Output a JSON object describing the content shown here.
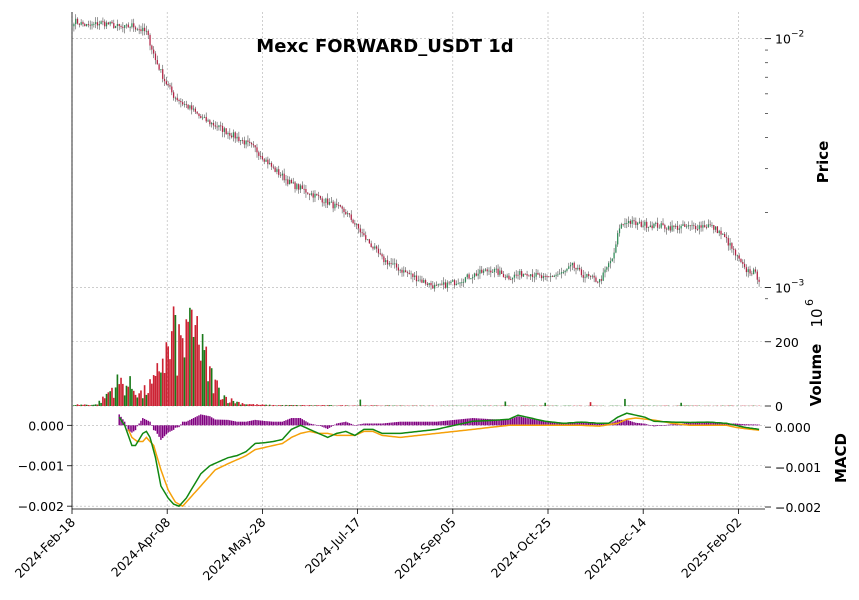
{
  "chart_data": {
    "type": "candlestick",
    "title": "Mexc FORWARD_USDT 1d",
    "x_tick_labels": [
      "2024-Feb-18",
      "2024-Apr-08",
      "2024-May-28",
      "2024-Jul-17",
      "2024-Sep-05",
      "2024-Oct-25",
      "2024-Dec-14",
      "2025-Feb-02"
    ],
    "colors": {
      "up": "#1a7a1a",
      "down": "#cc2233",
      "macd_line": "#118811",
      "signal_line": "#f5a10a",
      "histogram": "#800080"
    },
    "price_panel": {
      "ylabel": "Price",
      "scale": "log",
      "ylim": [
        0.00089,
        0.0128
      ],
      "tick_labels": [
        {
          "value": 0.01,
          "base": "10",
          "exp": "−2"
        },
        {
          "value": 0.001,
          "base": "10",
          "exp": "−3"
        }
      ],
      "close_keypoints": [
        [
          0,
          0.0118
        ],
        [
          8,
          0.0112
        ],
        [
          15,
          0.0116
        ],
        [
          20,
          0.0114
        ],
        [
          27,
          0.011
        ],
        [
          32,
          0.0113
        ],
        [
          40,
          0.0106
        ],
        [
          45,
          0.0082
        ],
        [
          50,
          0.0068
        ],
        [
          55,
          0.0059
        ],
        [
          60,
          0.0055
        ],
        [
          65,
          0.0052
        ],
        [
          70,
          0.0048
        ],
        [
          80,
          0.0044
        ],
        [
          90,
          0.004
        ],
        [
          100,
          0.0036
        ],
        [
          110,
          0.003
        ],
        [
          120,
          0.0026
        ],
        [
          130,
          0.0024
        ],
        [
          140,
          0.0022
        ],
        [
          150,
          0.002
        ],
        [
          160,
          0.0016
        ],
        [
          170,
          0.0013
        ],
        [
          180,
          0.00118
        ],
        [
          190,
          0.00108
        ],
        [
          200,
          0.001
        ],
        [
          210,
          0.00105
        ],
        [
          220,
          0.00112
        ],
        [
          230,
          0.00118
        ],
        [
          240,
          0.0011
        ],
        [
          250,
          0.00115
        ],
        [
          260,
          0.00108
        ],
        [
          265,
          0.00112
        ],
        [
          270,
          0.00114
        ],
        [
          275,
          0.00122
        ],
        [
          280,
          0.00113
        ],
        [
          285,
          0.00109
        ],
        [
          290,
          0.00106
        ],
        [
          292,
          0.00112
        ],
        [
          298,
          0.00135
        ],
        [
          301,
          0.00175
        ],
        [
          305,
          0.00185
        ],
        [
          310,
          0.0018
        ],
        [
          320,
          0.00178
        ],
        [
          330,
          0.00174
        ],
        [
          340,
          0.00175
        ],
        [
          350,
          0.00178
        ],
        [
          355,
          0.0017
        ],
        [
          360,
          0.00155
        ],
        [
          365,
          0.00135
        ],
        [
          370,
          0.00118
        ],
        [
          375,
          0.00115
        ],
        [
          378,
          0.00108
        ]
      ],
      "n_days": 379
    },
    "volume_panel": {
      "ylabel": "Volume",
      "unit_label": "10",
      "unit_exp": "6",
      "ylim": [
        0,
        330
      ],
      "tick_values": [
        0,
        200
      ],
      "spikes": [
        {
          "day": 55,
          "value": 310
        },
        {
          "day": 65,
          "value": 300
        },
        {
          "day": 68,
          "value": 280
        },
        {
          "day": 62,
          "value": 270
        }
      ],
      "envelope": [
        [
          12,
          5
        ],
        [
          16,
          25
        ],
        [
          20,
          60
        ],
        [
          25,
          90
        ],
        [
          30,
          80
        ],
        [
          35,
          60
        ],
        [
          38,
          40
        ],
        [
          40,
          65
        ],
        [
          45,
          85
        ],
        [
          48,
          180
        ],
        [
          52,
          200
        ],
        [
          55,
          230
        ],
        [
          58,
          230
        ],
        [
          62,
          240
        ],
        [
          65,
          250
        ],
        [
          68,
          230
        ],
        [
          72,
          180
        ],
        [
          75,
          120
        ],
        [
          80,
          60
        ],
        [
          85,
          25
        ],
        [
          90,
          15
        ],
        [
          95,
          8
        ],
        [
          100,
          5
        ],
        [
          110,
          3
        ],
        [
          150,
          2
        ],
        [
          200,
          1
        ],
        [
          379,
          1
        ]
      ],
      "extra_bars": [
        {
          "day": 158,
          "value": 20,
          "dir": "up"
        },
        {
          "day": 238,
          "value": 14,
          "dir": "up"
        },
        {
          "day": 260,
          "value": 10,
          "dir": "up"
        },
        {
          "day": 285,
          "value": 12,
          "dir": "down"
        },
        {
          "day": 304,
          "value": 22,
          "dir": "up"
        },
        {
          "day": 335,
          "value": 10,
          "dir": "up"
        }
      ]
    },
    "macd_panel": {
      "ylabel": "MACD",
      "left_ylim": [
        -0.00207,
        0.00028
      ],
      "left_tick_labels": [
        {
          "value": 0.0,
          "label": "0.000"
        },
        {
          "value": -0.001,
          "label": "−0.001"
        },
        {
          "value": -0.002,
          "label": "−0.002"
        }
      ],
      "right_ylim": [
        -0.00205,
        0.00033
      ],
      "right_tick_labels": [
        {
          "value": 0.0,
          "label": "0.000"
        },
        {
          "value": -0.001,
          "label": "−0.001"
        },
        {
          "value": -0.002,
          "label": "−0.002"
        }
      ],
      "start_day": 25,
      "macd_keypoints": [
        [
          25,
          0.0002
        ],
        [
          28,
          0.0
        ],
        [
          30,
          -0.00025
        ],
        [
          32,
          -0.0005
        ],
        [
          34,
          -0.0005
        ],
        [
          36,
          -0.00035
        ],
        [
          38,
          -0.0002
        ],
        [
          40,
          -0.00015
        ],
        [
          42,
          -0.0003
        ],
        [
          45,
          -0.0008
        ],
        [
          48,
          -0.0015
        ],
        [
          52,
          -0.0018
        ],
        [
          55,
          -0.00195
        ],
        [
          58,
          -0.002
        ],
        [
          62,
          -0.0018
        ],
        [
          66,
          -0.0015
        ],
        [
          70,
          -0.0012
        ],
        [
          75,
          -0.001
        ],
        [
          80,
          -0.0009
        ],
        [
          85,
          -0.0008
        ],
        [
          90,
          -0.00075
        ],
        [
          95,
          -0.00065
        ],
        [
          100,
          -0.00045
        ],
        [
          105,
          -0.00043
        ],
        [
          110,
          -0.0004
        ],
        [
          115,
          -0.00035
        ],
        [
          120,
          -0.0001
        ],
        [
          125,
          0.0
        ],
        [
          130,
          -0.0001
        ],
        [
          135,
          -0.0002
        ],
        [
          140,
          -0.0003
        ],
        [
          145,
          -0.0002
        ],
        [
          150,
          -0.00015
        ],
        [
          155,
          -0.00025
        ],
        [
          160,
          -0.0001
        ],
        [
          165,
          -0.0001
        ],
        [
          170,
          -0.0002
        ],
        [
          175,
          -0.0002
        ],
        [
          180,
          -0.0002
        ],
        [
          190,
          -0.00015
        ],
        [
          200,
          -0.0001
        ],
        [
          210,
          0.0
        ],
        [
          220,
          0.0001
        ],
        [
          230,
          0.00012
        ],
        [
          240,
          0.00015
        ],
        [
          245,
          0.00025
        ],
        [
          250,
          0.0002
        ],
        [
          260,
          0.0001
        ],
        [
          270,
          5e-05
        ],
        [
          280,
          8e-05
        ],
        [
          290,
          5e-05
        ],
        [
          295,
          5e-05
        ],
        [
          300,
          0.0002
        ],
        [
          305,
          0.0003
        ],
        [
          310,
          0.00025
        ],
        [
          315,
          0.0002
        ],
        [
          320,
          0.0001
        ],
        [
          330,
          8e-05
        ],
        [
          340,
          7e-05
        ],
        [
          350,
          8e-05
        ],
        [
          360,
          5e-05
        ],
        [
          365,
          0.0
        ],
        [
          370,
          -5e-05
        ],
        [
          375,
          -8e-05
        ],
        [
          378,
          -0.0001
        ]
      ],
      "signal_keypoints": [
        [
          30,
          -0.0001
        ],
        [
          32,
          -0.0003
        ],
        [
          35,
          -0.0004
        ],
        [
          38,
          -0.0004
        ],
        [
          40,
          -0.0003
        ],
        [
          44,
          -0.0005
        ],
        [
          48,
          -0.0011
        ],
        [
          52,
          -0.0016
        ],
        [
          56,
          -0.0019
        ],
        [
          60,
          -0.002
        ],
        [
          64,
          -0.0018
        ],
        [
          68,
          -0.0016
        ],
        [
          72,
          -0.0014
        ],
        [
          78,
          -0.0011
        ],
        [
          85,
          -0.00095
        ],
        [
          90,
          -0.00085
        ],
        [
          95,
          -0.00075
        ],
        [
          100,
          -0.0006
        ],
        [
          110,
          -0.0005
        ],
        [
          115,
          -0.00045
        ],
        [
          120,
          -0.0003
        ],
        [
          125,
          -0.0002
        ],
        [
          130,
          -0.00015
        ],
        [
          135,
          -0.0002
        ],
        [
          140,
          -0.0002
        ],
        [
          145,
          -0.00025
        ],
        [
          150,
          -0.00025
        ],
        [
          155,
          -0.00025
        ],
        [
          160,
          -0.00015
        ],
        [
          165,
          -0.00015
        ],
        [
          170,
          -0.00025
        ],
        [
          180,
          -0.0003
        ],
        [
          190,
          -0.00025
        ],
        [
          200,
          -0.0002
        ],
        [
          210,
          -0.00015
        ],
        [
          220,
          -0.0001
        ],
        [
          230,
          -5e-05
        ],
        [
          240,
          0.0
        ],
        [
          250,
          0.0
        ],
        [
          260,
          0.0
        ],
        [
          270,
          0.0
        ],
        [
          280,
          0.0
        ],
        [
          290,
          -2e-05
        ],
        [
          300,
          5e-05
        ],
        [
          305,
          0.00015
        ],
        [
          310,
          0.00018
        ],
        [
          320,
          0.00013
        ],
        [
          330,
          5e-05
        ],
        [
          340,
          0.0
        ],
        [
          350,
          0.0
        ],
        [
          360,
          0.0
        ],
        [
          365,
          -5e-05
        ],
        [
          370,
          -8e-05
        ],
        [
          378,
          -0.00012
        ]
      ]
    }
  }
}
